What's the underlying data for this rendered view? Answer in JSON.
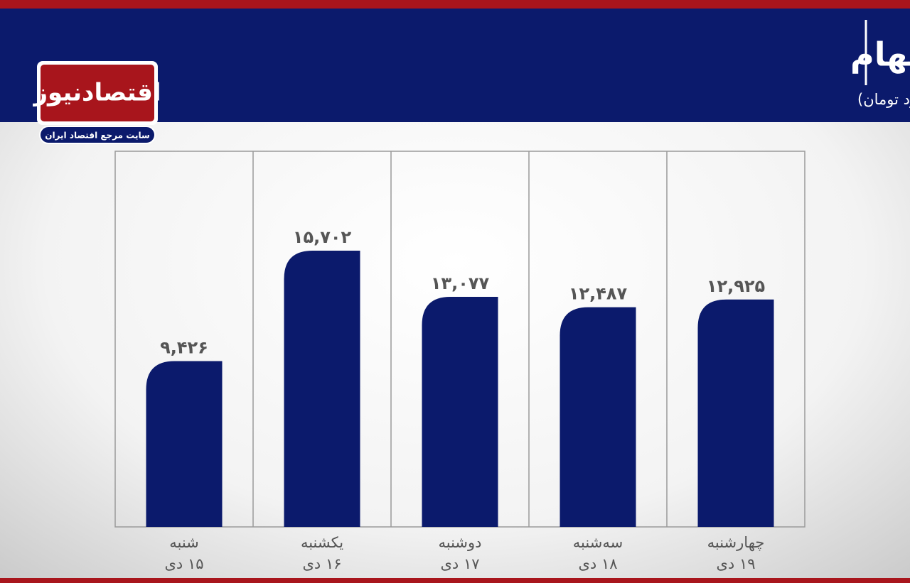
{
  "chart_data": {
    "type": "bar",
    "title": "ارزش معاملات خرد سهام",
    "subtitle": "(واحد:میلیارد تومان)",
    "logo": {
      "name": "اقتصادنیوز",
      "tagline": "سایت مرجع اقتصاد ایران"
    },
    "categories": [
      "شنبه",
      "یکشنبه",
      "دوشنبه",
      "سه‌شنبه",
      "چهارشنبه"
    ],
    "dates": [
      "۱۵ دی",
      "۱۶ دی",
      "۱۷ دی",
      "۱۸ دی",
      "۱۹ دی"
    ],
    "values": [
      9426,
      15702,
      13077,
      12487,
      12925
    ],
    "value_labels": [
      "۹,۴۲۶",
      "۱۵,۷۰۲",
      "۱۳,۰۷۷",
      "۱۲,۴۸۷",
      "۱۲,۹۲۵"
    ],
    "color": "#0b1a6c"
  }
}
